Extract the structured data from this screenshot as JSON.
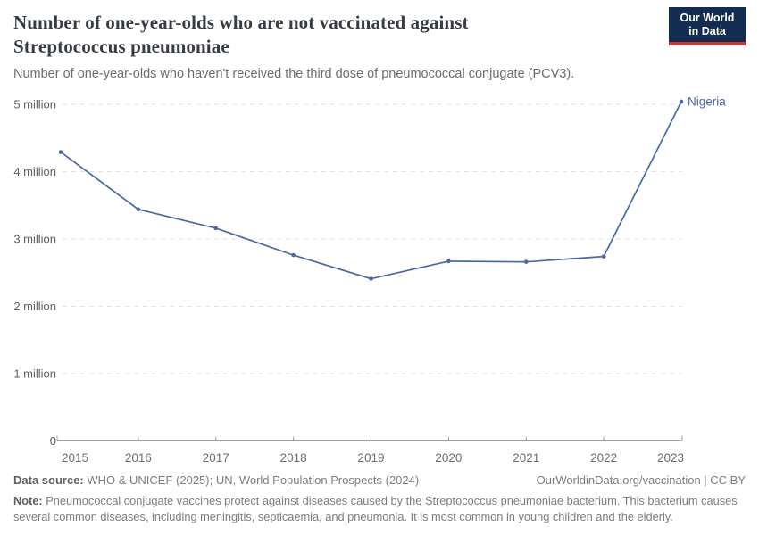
{
  "header": {
    "title": "Number of one-year-olds who are not vaccinated against Streptococcus pneumoniae",
    "subtitle": "Number of one-year-olds who haven't received the third dose of pneumococcal conjugate (PCV3).",
    "logo_line1": "Our World",
    "logo_line2": "in Data"
  },
  "chart_data": {
    "type": "line",
    "title": "Number of one-year-olds who are not vaccinated against Streptococcus pneumoniae",
    "xlabel": "",
    "ylabel": "",
    "x": [
      2015,
      2016,
      2017,
      2018,
      2019,
      2020,
      2021,
      2022,
      2023
    ],
    "series": [
      {
        "name": "Nigeria",
        "values": [
          4290000,
          3440000,
          3160000,
          2760000,
          2410000,
          2670000,
          2660000,
          2740000,
          5040000
        ]
      }
    ],
    "ylim": [
      0,
      5000000
    ],
    "yticks": [
      {
        "value": 0,
        "label": "0"
      },
      {
        "value": 1000000,
        "label": "1 million"
      },
      {
        "value": 2000000,
        "label": "2 million"
      },
      {
        "value": 3000000,
        "label": "3 million"
      },
      {
        "value": 4000000,
        "label": "4 million"
      },
      {
        "value": 5000000,
        "label": "5 million"
      }
    ],
    "grid": "horizontal-dashed",
    "legend": "line-end-label",
    "colors": {
      "line": "#4c68a1",
      "grid": "#e2e2e2",
      "axis": "#a3a3a3",
      "tick_text": "#666666"
    }
  },
  "footer": {
    "datasource_label": "Data source:",
    "datasource_text": " WHO & UNICEF (2025); UN, World Population Prospects (2024)",
    "rights": "OurWorldinData.org/vaccination | CC BY",
    "note_label": "Note:",
    "note_text": " Pneumococcal conjugate vaccines protect against diseases caused by the Streptococcus pneumoniae bacterium. This bacterium causes several common diseases, including meningitis, septicaemia, and pneumonia. It is most common in young children and the elderly."
  }
}
